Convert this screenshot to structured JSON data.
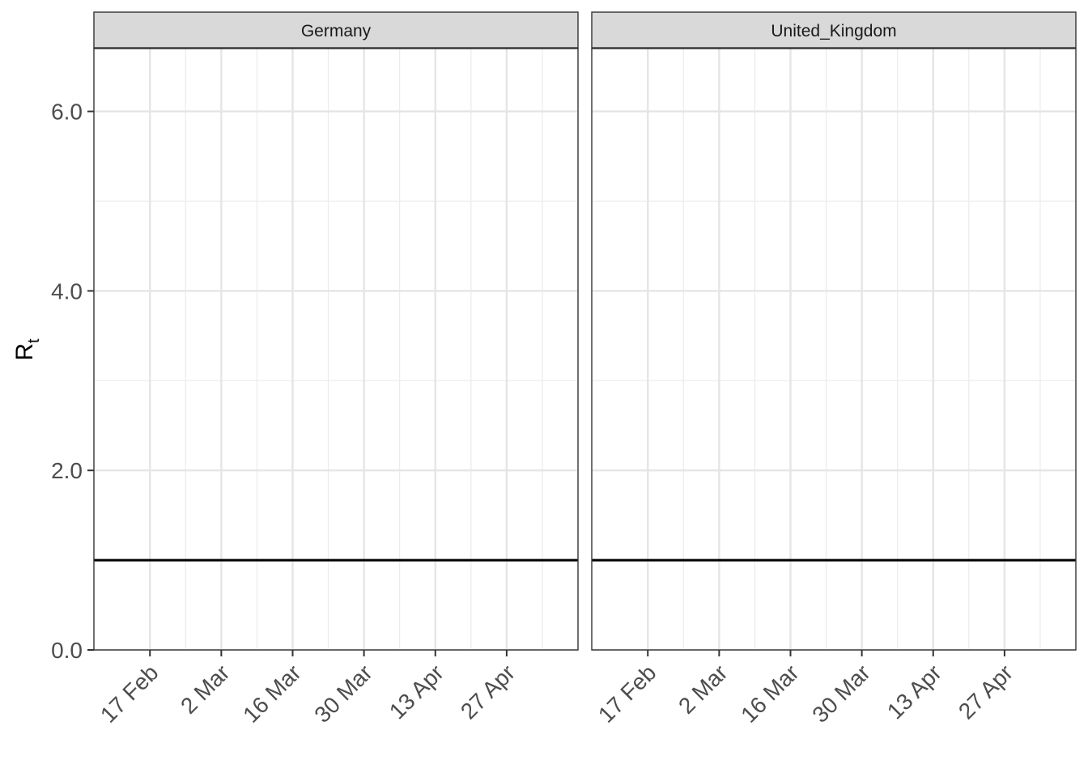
{
  "chart_data": {
    "type": "line",
    "ylabel": "R",
    "ylabel_subscript": "t",
    "ylim": [
      0,
      6.7
    ],
    "yticks": [
      0,
      2,
      4,
      6
    ],
    "ytick_labels": [
      "0.0",
      "2.0",
      "4.0",
      "6.0"
    ],
    "xlim": [
      "2020-02-06",
      "2020-05-11"
    ],
    "xticks": [
      "2020-02-17",
      "2020-03-02",
      "2020-03-16",
      "2020-03-30",
      "2020-04-13",
      "2020-04-27"
    ],
    "xtick_labels": [
      "17 Feb",
      "2 Mar",
      "16 Mar",
      "30 Mar",
      "13 Apr",
      "27 Apr"
    ],
    "reference_line": {
      "y": 1.0,
      "color": "#000000"
    },
    "grid": true,
    "facets": [
      {
        "label": "Germany",
        "series": []
      },
      {
        "label": "United_Kingdom",
        "series": []
      }
    ]
  }
}
